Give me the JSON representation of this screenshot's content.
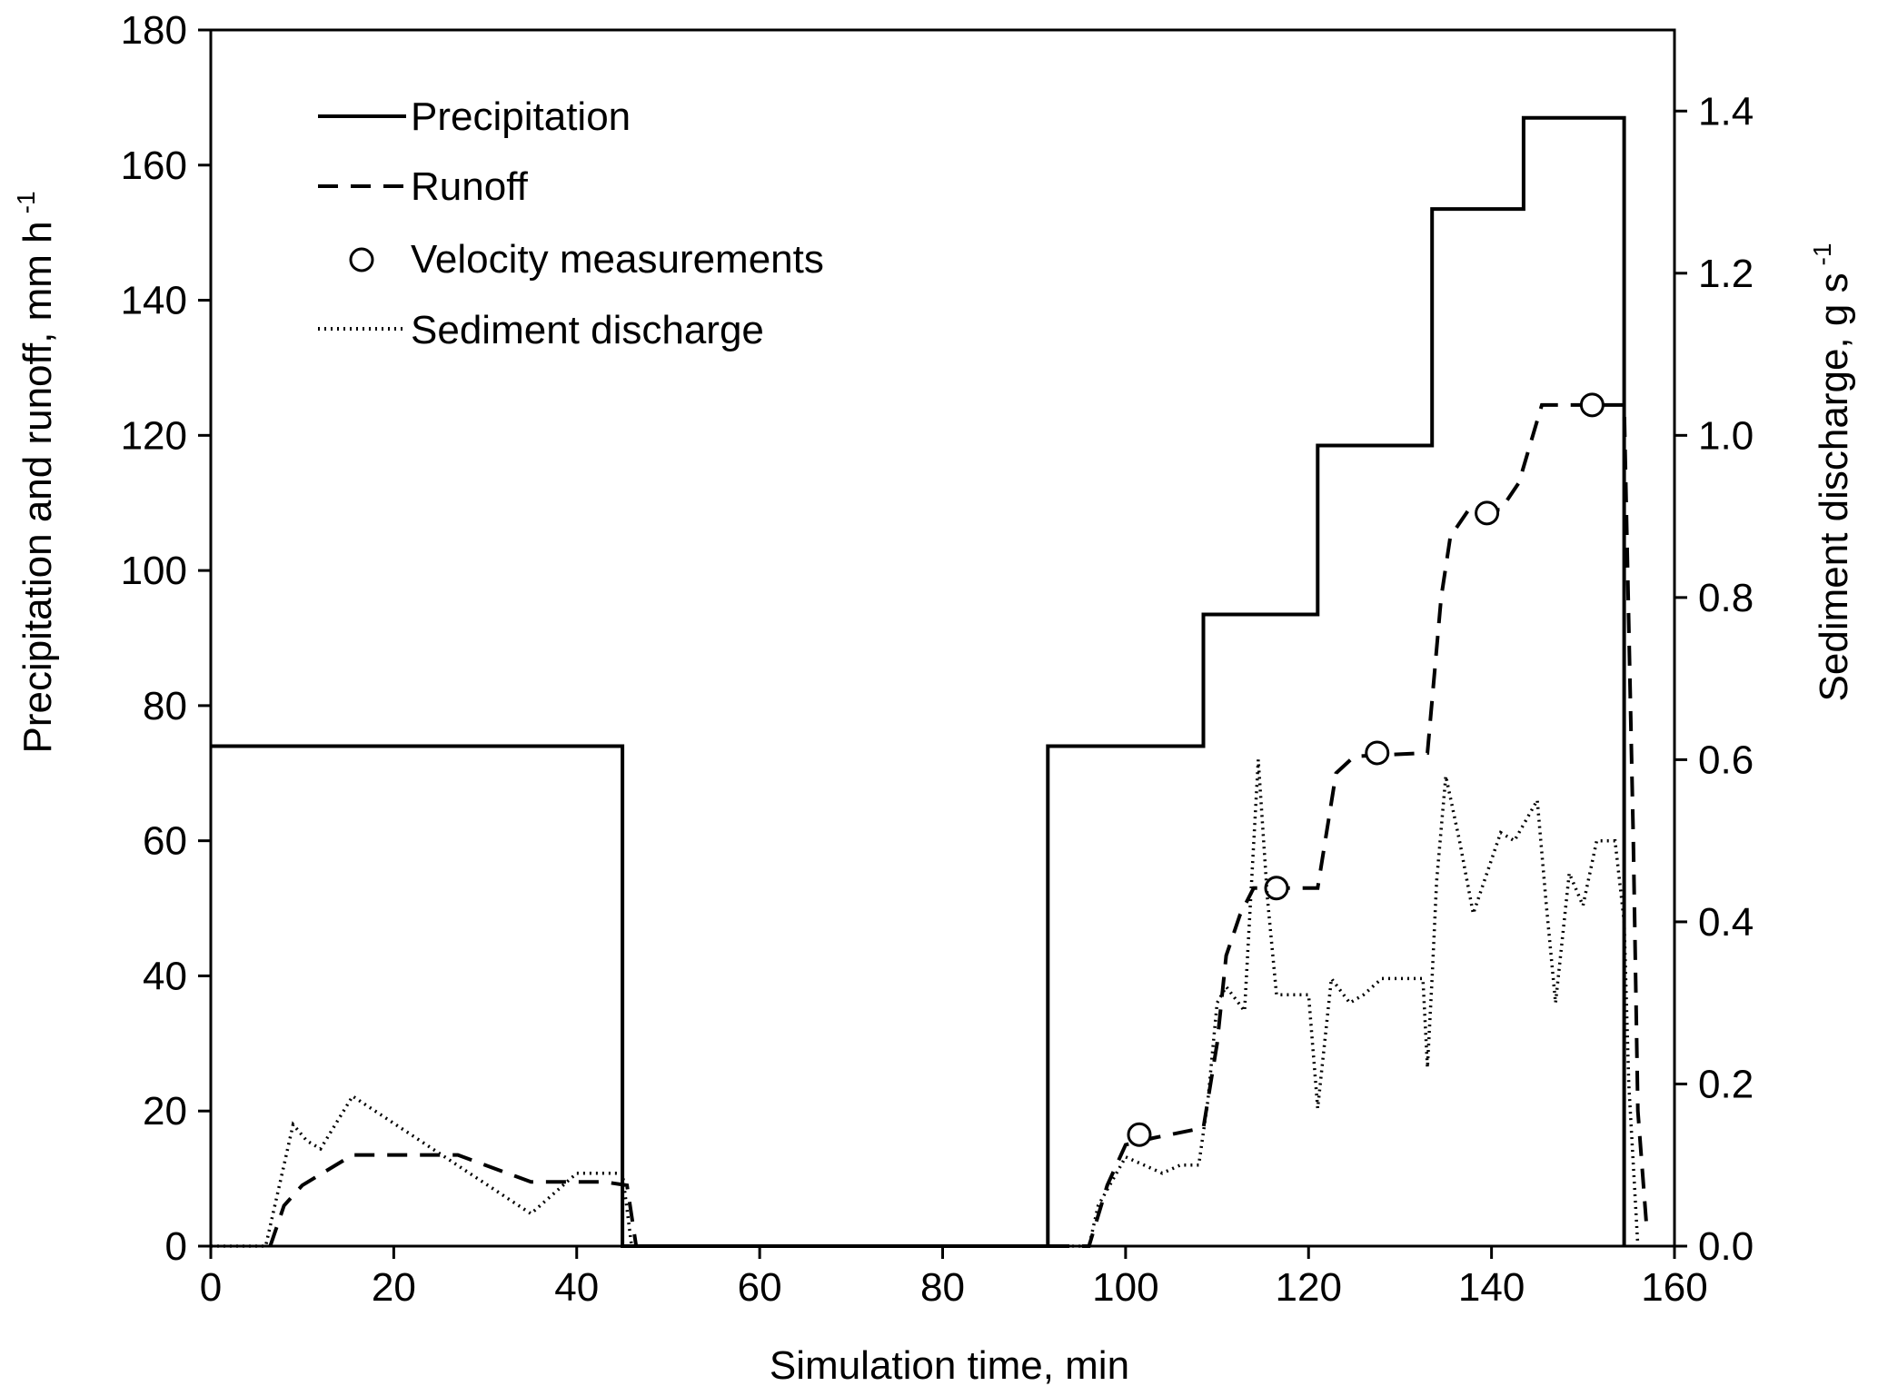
{
  "chart_data": {
    "type": "line",
    "xlabel": "Simulation time, min",
    "ylabel_left": "Precipitation and runoff, mm h",
    "ylabel_left_sup": "-1",
    "ylabel_right": "Sediment discharge, g s",
    "ylabel_right_sup": "-1",
    "xlim": [
      0,
      160
    ],
    "ylim_left": [
      0,
      180
    ],
    "ylim_right": [
      0,
      1.5
    ],
    "x_ticks": [
      "0",
      "20",
      "40",
      "60",
      "80",
      "100",
      "120",
      "140",
      "160"
    ],
    "y_left_ticks": [
      "0",
      "20",
      "40",
      "60",
      "80",
      "100",
      "120",
      "140",
      "160",
      "180"
    ],
    "y_right_ticks": [
      "0.0",
      "0.2",
      "0.4",
      "0.6",
      "0.8",
      "1.0",
      "1.2",
      "1.4"
    ],
    "grid": false,
    "legend_position": "top-left",
    "series": [
      {
        "name": "Precipitation",
        "style": "solid",
        "axis": "left",
        "points": [
          [
            0,
            74
          ],
          [
            45,
            74
          ],
          [
            45,
            0
          ],
          [
            91.5,
            0
          ],
          [
            91.5,
            74
          ],
          [
            108.5,
            74
          ],
          [
            108.5,
            93.5
          ],
          [
            121,
            93.5
          ],
          [
            121,
            118.5
          ],
          [
            133.5,
            118.5
          ],
          [
            133.5,
            153.5
          ],
          [
            143.5,
            153.5
          ],
          [
            143.5,
            167
          ],
          [
            154.5,
            167
          ],
          [
            154.5,
            0
          ]
        ]
      },
      {
        "name": "Runoff",
        "style": "dashed",
        "axis": "left",
        "points": [
          [
            6.5,
            0
          ],
          [
            8,
            6
          ],
          [
            10,
            9
          ],
          [
            15.5,
            13.5
          ],
          [
            27,
            13.5
          ],
          [
            35,
            9.5
          ],
          [
            43,
            9.5
          ],
          [
            45.5,
            9
          ],
          [
            46.5,
            0
          ],
          [
            96,
            0
          ],
          [
            98,
            9
          ],
          [
            100,
            15
          ],
          [
            103,
            16
          ],
          [
            108.5,
            17.5
          ],
          [
            110,
            30
          ],
          [
            111,
            43
          ],
          [
            112.5,
            49
          ],
          [
            114,
            53
          ],
          [
            121,
            53
          ],
          [
            123,
            70
          ],
          [
            125,
            72.5
          ],
          [
            133,
            73
          ],
          [
            134.5,
            96
          ],
          [
            135.5,
            105
          ],
          [
            137.5,
            109
          ],
          [
            141,
            109
          ],
          [
            143,
            113
          ],
          [
            145.5,
            124.5
          ],
          [
            154.5,
            124.5
          ],
          [
            155.5,
            60
          ],
          [
            156,
            20
          ],
          [
            157,
            2
          ]
        ]
      },
      {
        "name": "Velocity measurements",
        "style": "marker",
        "axis": "left",
        "points": [
          [
            101.5,
            16.5
          ],
          [
            116.5,
            53
          ],
          [
            127.5,
            73
          ],
          [
            139.5,
            108.5
          ],
          [
            151,
            124.5
          ]
        ]
      },
      {
        "name": "Sediment discharge",
        "style": "dotted",
        "axis": "right",
        "points": [
          [
            0,
            0
          ],
          [
            6,
            0
          ],
          [
            8,
            0.1
          ],
          [
            9,
            0.15
          ],
          [
            10.5,
            0.13
          ],
          [
            12,
            0.12
          ],
          [
            15.5,
            0.185
          ],
          [
            35,
            0.04
          ],
          [
            40,
            0.09
          ],
          [
            45,
            0.09
          ],
          [
            46,
            0
          ],
          [
            96,
            0
          ],
          [
            97,
            0.05
          ],
          [
            100,
            0.11
          ],
          [
            102,
            0.1
          ],
          [
            104,
            0.09
          ],
          [
            106,
            0.1
          ],
          [
            108,
            0.1
          ],
          [
            109,
            0.18
          ],
          [
            110,
            0.3
          ],
          [
            111,
            0.32
          ],
          [
            113,
            0.29
          ],
          [
            114.5,
            0.6
          ],
          [
            115.5,
            0.43
          ],
          [
            116.5,
            0.31
          ],
          [
            120,
            0.31
          ],
          [
            121,
            0.17
          ],
          [
            122.5,
            0.33
          ],
          [
            124.5,
            0.3
          ],
          [
            126,
            0.31
          ],
          [
            128,
            0.33
          ],
          [
            132.5,
            0.33
          ],
          [
            133,
            0.22
          ],
          [
            133.5,
            0.33
          ],
          [
            134,
            0.45
          ],
          [
            135,
            0.58
          ],
          [
            136.5,
            0.5
          ],
          [
            138,
            0.41
          ],
          [
            141,
            0.51
          ],
          [
            142.5,
            0.5
          ],
          [
            143.5,
            0.52
          ],
          [
            145,
            0.55
          ],
          [
            146,
            0.42
          ],
          [
            147,
            0.3
          ],
          [
            148.5,
            0.46
          ],
          [
            150,
            0.42
          ],
          [
            151.5,
            0.5
          ],
          [
            153.5,
            0.5
          ],
          [
            154.5,
            0.4
          ],
          [
            155,
            0.2
          ],
          [
            156,
            0
          ]
        ]
      }
    ]
  }
}
